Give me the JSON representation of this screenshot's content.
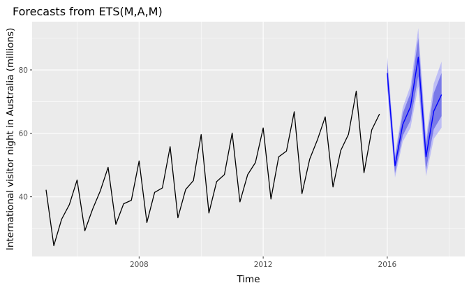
{
  "chart_data": {
    "type": "line",
    "title": "Forecasts from ETS(M,A,M)",
    "xlabel": "Time",
    "ylabel": "International visitor night in Australia (millions)",
    "xlim": [
      2004.55,
      2018.5
    ],
    "ylim": [
      21.2,
      95.2
    ],
    "x_ticks": [
      2008,
      2012,
      2016
    ],
    "x_tick_labels": [
      "2008",
      "2012",
      "2016"
    ],
    "y_ticks": [
      40,
      60,
      80
    ],
    "y_tick_labels": [
      "40",
      "60",
      "80"
    ],
    "grid": true,
    "legend": "none",
    "colors": {
      "panel": "#ebebeb",
      "grid_major": "#ffffff",
      "history": "#000000",
      "forecast": "#0000ff",
      "band_95": "#bebef5",
      "band_80": "#7a7ae8"
    },
    "series": [
      {
        "role": "history",
        "color": "#000000",
        "x": [
          2005.0,
          2005.25,
          2005.5,
          2005.75,
          2006.0,
          2006.25,
          2006.5,
          2006.75,
          2007.0,
          2007.25,
          2007.5,
          2007.75,
          2008.0,
          2008.25,
          2008.5,
          2008.75,
          2009.0,
          2009.25,
          2009.5,
          2009.75,
          2010.0,
          2010.25,
          2010.5,
          2010.75,
          2011.0,
          2011.25,
          2011.5,
          2011.75,
          2012.0,
          2012.25,
          2012.5,
          2012.75,
          2013.0,
          2013.25,
          2013.5,
          2013.75,
          2014.0,
          2014.25,
          2014.5,
          2014.75,
          2015.0,
          2015.25,
          2015.5,
          2015.75
        ],
        "values": [
          42.2,
          24.6,
          32.9,
          37.5,
          45.3,
          29.3,
          36.1,
          41.9,
          49.3,
          31.3,
          37.8,
          38.9,
          51.3,
          31.9,
          41.4,
          42.8,
          55.8,
          33.4,
          42.3,
          45.1,
          59.6,
          34.9,
          44.8,
          47.0,
          60.1,
          38.4,
          47.0,
          50.8,
          61.7,
          39.3,
          52.6,
          54.4,
          66.8,
          41.0,
          51.9,
          58.0,
          65.2,
          43.1,
          54.6,
          59.7,
          73.3,
          47.6,
          61.1,
          66.1
        ]
      },
      {
        "role": "forecast",
        "color": "#0000ff",
        "x": [
          2016.0,
          2016.25,
          2016.5,
          2016.75,
          2017.0,
          2017.25,
          2017.5,
          2017.75
        ],
        "values": [
          79.0,
          49.8,
          62.8,
          68.4,
          84.0,
          52.6,
          67.0,
          72.2
        ],
        "lower_80": [
          75.6,
          47.4,
          59.3,
          64.1,
          78.0,
          48.6,
          61.3,
          65.4
        ],
        "upper_80": [
          82.4,
          52.2,
          66.3,
          72.7,
          90.0,
          56.6,
          72.7,
          79.0
        ],
        "lower_95": [
          73.8,
          46.1,
          57.4,
          61.8,
          74.8,
          46.5,
          58.3,
          61.8
        ],
        "upper_95": [
          84.2,
          53.5,
          68.2,
          75.0,
          93.2,
          58.7,
          75.7,
          82.6
        ]
      }
    ]
  }
}
